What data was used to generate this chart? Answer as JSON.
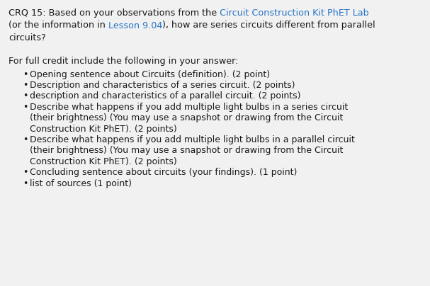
{
  "bg_color": "#f1f1f1",
  "text_color": "#1a1a1a",
  "link_color": "#2874c8",
  "font_size": 9.2,
  "font_size_bullet": 9.0,
  "bullet_char": "•",
  "line1_parts": [
    {
      "text": "CRQ 15: Based on your observations from the ",
      "color": "#1a1a1a"
    },
    {
      "text": "Circuit Construction Kit PhET Lab",
      "color": "#2874c8"
    }
  ],
  "line2_parts": [
    {
      "text": "(or the information in ",
      "color": "#1a1a1a"
    },
    {
      "text": "Lesson 9.04",
      "color": "#2874c8"
    },
    {
      "text": "), how are series circuits different from parallel",
      "color": "#1a1a1a"
    }
  ],
  "line3": "circuits?",
  "subtitle": "For full credit include the following in your answer:",
  "bullets": [
    [
      {
        "text": "Opening sentence about Circuits (definition). (2 point)",
        "color": "#1a1a1a"
      }
    ],
    [
      {
        "text": "Description and characteristics of a series circuit. (2 points)",
        "color": "#1a1a1a"
      }
    ],
    [
      {
        "text": "description and characteristics of a parallel circuit. (2 points)",
        "color": "#1a1a1a"
      }
    ],
    [
      {
        "text": "Describe what happens if you add multiple light bulbs in a series circuit",
        "color": "#1a1a1a"
      }
    ],
    [
      {
        "text": "(their brightness) (You may use a snapshot or drawing from the Circuit",
        "color": "#1a1a1a"
      }
    ],
    [
      {
        "text": "Construction Kit PhET). (2 points)",
        "color": "#1a1a1a"
      }
    ],
    [
      {
        "text": "Describe what happens if you add multiple light bulbs in a parallel circuit",
        "color": "#1a1a1a"
      }
    ],
    [
      {
        "text": "(their brightness) (You may use a snapshot or drawing from the Circuit",
        "color": "#1a1a1a"
      }
    ],
    [
      {
        "text": "Construction Kit PhET). (2 points)",
        "color": "#1a1a1a"
      }
    ],
    [
      {
        "text": "Concluding sentence about circuits (your findings). (1 point)",
        "color": "#1a1a1a"
      }
    ],
    [
      {
        "text": "list of sources (1 point)",
        "color": "#1a1a1a"
      }
    ]
  ],
  "bullet_flags": [
    true,
    true,
    true,
    true,
    false,
    false,
    true,
    false,
    false,
    true,
    true
  ],
  "figsize": [
    6.07,
    4.04
  ],
  "dpi": 100
}
